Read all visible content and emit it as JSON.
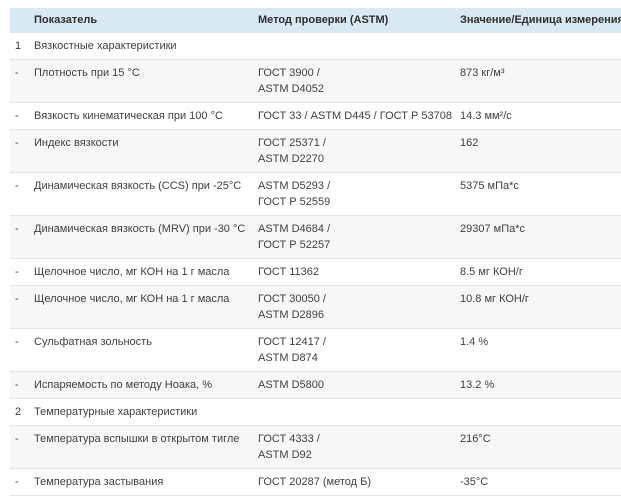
{
  "colors": {
    "header_bg": "#d8e9f3",
    "alt_row_bg": "#f7f7f7",
    "divider": "#e4e4e4",
    "text": "#3f3f3f"
  },
  "table": {
    "headers": {
      "num": "",
      "parameter": "Показатель",
      "method": "Метод проверки (ASTM)",
      "value": "Значение/Единица измерения"
    },
    "rows": [
      {
        "num": "1",
        "name": "Вязкостные характеристики",
        "method": "",
        "value": ""
      },
      {
        "num": "-",
        "name": "Плотность при 15 °C",
        "method": "ГОСТ 3900 /\nASTM D4052",
        "value": "873 кг/м³"
      },
      {
        "num": "-",
        "name": "Вязкость кинематическая при 100 °C",
        "method": "ГОСТ 33 / ASTM D445 / ГОСТ Р 53708",
        "value": "14.3 мм²/с"
      },
      {
        "num": "-",
        "name": "Индекс вязкости",
        "method": "ГОСТ 25371 /\nASTM D2270",
        "value": "162"
      },
      {
        "num": "-",
        "name": "Динамическая вязкость (CCS) при -25°C",
        "method": "ASTM D5293 /\nГОСТ Р 52559",
        "value": "5375 мПа*с"
      },
      {
        "num": "-",
        "name": "Динамическая вязкость (MRV) при -30 °C",
        "method": "ASTM D4684 /\nГОСТ Р 52257",
        "value": "29307 мПа*с"
      },
      {
        "num": "-",
        "name": "Щелочное число, мг КОН на 1 г масла",
        "method": "ГОСТ 11362",
        "value": "8.5 мг КОН/г"
      },
      {
        "num": "-",
        "name": "Щелочное число, мг КОН на 1 г масла",
        "method": "ГОСТ 30050 /\nASTM D2896",
        "value": "10.8 мг КОН/г"
      },
      {
        "num": "-",
        "name": "Сульфатная зольность",
        "method": "ГОСТ 12417 /\nASTM D874",
        "value": "1.4 %"
      },
      {
        "num": "-",
        "name": "Испаряемость по методу Ноака, %",
        "method": "ASTM D5800",
        "value": "13.2 %"
      },
      {
        "num": "2",
        "name": "Температурные характеристики",
        "method": "",
        "value": ""
      },
      {
        "num": "-",
        "name": "Температура вспышки в открытом тигле",
        "method": "ГОСТ 4333 /\nASTM D92",
        "value": "216°C"
      },
      {
        "num": "-",
        "name": "Температура застывания",
        "method": "ГОСТ 20287 (метод Б)",
        "value": "-35°C"
      }
    ]
  }
}
